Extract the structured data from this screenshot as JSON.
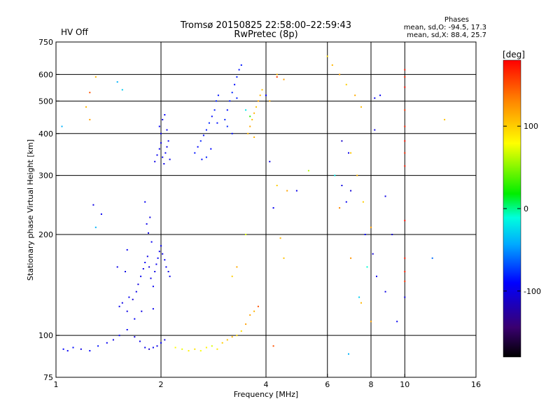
{
  "header": {
    "title_line1": "Tromsø 20150825 22:58:00–22:59:43",
    "title_line2": "RwPretec (8p)",
    "hv_status": "HV Off",
    "hv_color": "#d40000",
    "stats_title": "Phases",
    "stats_line1": "mean, sd,O: -94.5, 17.3",
    "stats_line2": "mean, sd,X: 88.4, 25.7"
  },
  "chart_data": {
    "type": "scatter",
    "xlabel": "Frequency [MHz]",
    "ylabel": "Stationary phase Virtual Height [km]",
    "x_scale": "log",
    "y_scale": "log",
    "xlim": [
      1,
      16
    ],
    "ylim": [
      75,
      750
    ],
    "x_ticks": [
      {
        "value": 1,
        "label": "1"
      },
      {
        "value": 2,
        "label": "2"
      },
      {
        "value": 4,
        "label": "4"
      },
      {
        "value": 6,
        "label": "6"
      },
      {
        "value": 8,
        "label": "8"
      },
      {
        "value": 10,
        "label": "10"
      },
      {
        "value": 16,
        "label": "16"
      }
    ],
    "y_ticks": [
      {
        "value": 75,
        "label": "75"
      },
      {
        "value": 100,
        "label": "100"
      },
      {
        "value": 200,
        "label": "200"
      },
      {
        "value": 300,
        "label": "300"
      },
      {
        "value": 400,
        "label": "400"
      },
      {
        "value": 500,
        "label": "500"
      },
      {
        "value": 600,
        "label": "600"
      },
      {
        "value": 750,
        "label": "750"
      }
    ],
    "x_grid": [
      2,
      4,
      6,
      8,
      10
    ],
    "y_grid": [
      100,
      200,
      300,
      400,
      500,
      600
    ],
    "colorbar": {
      "label": "[deg]",
      "range": [
        -180,
        180
      ],
      "ticks": [
        {
          "value": 100,
          "label": "100"
        },
        {
          "value": 0,
          "label": "0"
        },
        {
          "value": -100,
          "label": "-100"
        }
      ]
    },
    "points": [
      [
        1.05,
        91,
        -90
      ],
      [
        1.08,
        90,
        -95
      ],
      [
        1.12,
        92,
        -88
      ],
      [
        1.18,
        91,
        -100
      ],
      [
        1.25,
        90,
        -92
      ],
      [
        1.32,
        93,
        -85
      ],
      [
        1.4,
        95,
        -95
      ],
      [
        1.46,
        97,
        -100
      ],
      [
        1.52,
        100,
        -90
      ],
      [
        1.6,
        104,
        -95
      ],
      [
        1.68,
        99,
        -102
      ],
      [
        1.74,
        96,
        -98
      ],
      [
        1.8,
        92,
        -95
      ],
      [
        1.85,
        91,
        -110
      ],
      [
        1.9,
        92,
        -96
      ],
      [
        1.95,
        93,
        -100
      ],
      [
        2.0,
        95,
        -92
      ],
      [
        2.05,
        97,
        -99
      ],
      [
        1.55,
        125,
        -100
      ],
      [
        1.62,
        130,
        -95
      ],
      [
        1.66,
        128,
        -105
      ],
      [
        1.7,
        135,
        -98
      ],
      [
        1.72,
        142,
        -102
      ],
      [
        1.75,
        150,
        -96
      ],
      [
        1.78,
        158,
        -100
      ],
      [
        1.8,
        165,
        -92
      ],
      [
        1.83,
        172,
        -99
      ],
      [
        1.85,
        160,
        -104
      ],
      [
        1.87,
        148,
        -100
      ],
      [
        1.9,
        140,
        -95
      ],
      [
        1.92,
        155,
        -101
      ],
      [
        1.94,
        163,
        -97
      ],
      [
        1.96,
        170,
        -93
      ],
      [
        1.98,
        178,
        -99
      ],
      [
        2.0,
        185,
        -96
      ],
      [
        2.02,
        175,
        -100
      ],
      [
        2.05,
        168,
        -92
      ],
      [
        2.07,
        160,
        -95
      ],
      [
        2.1,
        155,
        -100
      ],
      [
        2.12,
        150,
        -97
      ],
      [
        1.88,
        190,
        -95
      ],
      [
        1.84,
        202,
        -100
      ],
      [
        1.82,
        215,
        -98
      ],
      [
        1.86,
        225,
        -102
      ],
      [
        1.8,
        250,
        -94
      ],
      [
        1.9,
        120,
        -97
      ],
      [
        1.76,
        118,
        -100
      ],
      [
        1.68,
        112,
        -93
      ],
      [
        1.6,
        118,
        -99
      ],
      [
        1.52,
        122,
        -96
      ],
      [
        1.92,
        330,
        -100
      ],
      [
        1.95,
        345,
        -95
      ],
      [
        1.98,
        360,
        -98
      ],
      [
        2.0,
        375,
        -101
      ],
      [
        2.02,
        340,
        -96
      ],
      [
        2.04,
        325,
        -99
      ],
      [
        2.06,
        350,
        -94
      ],
      [
        2.08,
        365,
        -100
      ],
      [
        2.1,
        380,
        -97
      ],
      [
        2.0,
        400,
        -99
      ],
      [
        1.98,
        420,
        -95
      ],
      [
        2.02,
        440,
        -100
      ],
      [
        2.05,
        455,
        -92
      ],
      [
        2.08,
        410,
        -96
      ],
      [
        2.12,
        335,
        -98
      ],
      [
        2.5,
        350,
        -85
      ],
      [
        2.55,
        365,
        -88
      ],
      [
        2.6,
        380,
        -82
      ],
      [
        2.65,
        395,
        -86
      ],
      [
        2.7,
        410,
        -84
      ],
      [
        2.75,
        430,
        -80
      ],
      [
        2.8,
        450,
        -87
      ],
      [
        2.85,
        470,
        -83
      ],
      [
        2.9,
        430,
        -85
      ],
      [
        2.78,
        360,
        -89
      ],
      [
        2.7,
        340,
        -81
      ],
      [
        2.62,
        335,
        -86
      ],
      [
        2.88,
        500,
        -82
      ],
      [
        2.92,
        520,
        -85
      ],
      [
        3.05,
        440,
        -82
      ],
      [
        3.1,
        470,
        -86
      ],
      [
        3.15,
        500,
        -84
      ],
      [
        3.2,
        530,
        -80
      ],
      [
        3.25,
        560,
        -88
      ],
      [
        3.3,
        590,
        -82
      ],
      [
        3.35,
        620,
        -86
      ],
      [
        3.4,
        640,
        -84
      ],
      [
        3.1,
        420,
        -80
      ],
      [
        3.2,
        400,
        -86
      ],
      [
        3.3,
        510,
        -82
      ],
      [
        3.55,
        400,
        110
      ],
      [
        3.6,
        420,
        115
      ],
      [
        3.65,
        440,
        108
      ],
      [
        3.7,
        460,
        112
      ],
      [
        3.75,
        480,
        105
      ],
      [
        3.8,
        500,
        118
      ],
      [
        3.85,
        520,
        110
      ],
      [
        3.9,
        540,
        104
      ],
      [
        3.7,
        390,
        112
      ],
      [
        3.6,
        450,
        30
      ],
      [
        3.5,
        470,
        -20
      ],
      [
        2.2,
        92,
        80
      ],
      [
        2.3,
        91,
        75
      ],
      [
        2.4,
        90,
        85
      ],
      [
        2.5,
        91,
        90
      ],
      [
        2.6,
        90,
        78
      ],
      [
        2.7,
        92,
        84
      ],
      [
        2.8,
        93,
        70
      ],
      [
        2.9,
        91,
        88
      ],
      [
        3.0,
        95,
        100
      ],
      [
        3.1,
        97,
        105
      ],
      [
        3.2,
        99,
        110
      ],
      [
        3.3,
        100,
        95
      ],
      [
        3.4,
        103,
        92
      ],
      [
        3.5,
        108,
        120
      ],
      [
        3.6,
        115,
        118
      ],
      [
        3.7,
        118,
        112
      ],
      [
        3.8,
        122,
        150
      ],
      [
        3.3,
        160,
        115
      ],
      [
        3.5,
        200,
        70
      ],
      [
        3.2,
        150,
        100
      ],
      [
        4.3,
        600,
        110
      ],
      [
        4.5,
        580,
        120
      ],
      [
        4.1,
        500,
        115
      ],
      [
        4.3,
        280,
        100
      ],
      [
        4.6,
        270,
        118
      ],
      [
        4.4,
        195,
        110
      ],
      [
        4.5,
        170,
        105
      ],
      [
        4.2,
        93,
        150
      ],
      [
        4.1,
        330,
        -100
      ],
      [
        4.2,
        240,
        -95
      ],
      [
        4.9,
        270,
        -98
      ],
      [
        4.0,
        520,
        -90
      ],
      [
        4.3,
        590,
        160
      ],
      [
        6.0,
        680,
        95
      ],
      [
        6.2,
        640,
        110
      ],
      [
        6.5,
        600,
        120
      ],
      [
        6.8,
        560,
        100
      ],
      [
        7.2,
        520,
        115
      ],
      [
        7.5,
        480,
        108
      ],
      [
        7.0,
        350,
        105
      ],
      [
        7.3,
        300,
        110
      ],
      [
        7.6,
        250,
        100
      ],
      [
        8.0,
        210,
        120
      ],
      [
        6.5,
        240,
        130
      ],
      [
        7.0,
        170,
        125
      ],
      [
        7.5,
        125,
        110
      ],
      [
        8.0,
        110,
        118
      ],
      [
        6.3,
        300,
        -20
      ],
      [
        6.6,
        280,
        -100
      ],
      [
        6.8,
        250,
        -95
      ],
      [
        7.0,
        270,
        -105
      ],
      [
        6.6,
        380,
        -110
      ],
      [
        6.9,
        350,
        -98
      ],
      [
        7.7,
        200,
        -90
      ],
      [
        8.2,
        410,
        -100
      ],
      [
        8.5,
        520,
        -95
      ],
      [
        6.9,
        88,
        -40
      ],
      [
        7.4,
        130,
        -30
      ],
      [
        5.3,
        310,
        60
      ],
      [
        7.8,
        160,
        -10
      ],
      [
        8.8,
        135,
        -100
      ],
      [
        8.3,
        150,
        -98
      ],
      [
        8.1,
        175,
        -105
      ],
      [
        8.2,
        510,
        -95
      ],
      [
        10.0,
        620,
        170
      ],
      [
        10.0,
        590,
        165
      ],
      [
        10.0,
        550,
        175
      ],
      [
        10.0,
        470,
        160
      ],
      [
        10.0,
        420,
        168
      ],
      [
        10.0,
        380,
        172
      ],
      [
        10.0,
        350,
        165
      ],
      [
        10.0,
        320,
        170
      ],
      [
        10.0,
        220,
        175
      ],
      [
        10.0,
        170,
        170
      ],
      [
        10.0,
        155,
        168
      ],
      [
        10.0,
        145,
        162
      ],
      [
        10.0,
        130,
        -100
      ],
      [
        9.5,
        110,
        -95
      ],
      [
        12.0,
        170,
        -60
      ],
      [
        13.0,
        440,
        105
      ],
      [
        8.8,
        260,
        -100
      ],
      [
        9.2,
        200,
        -105
      ],
      [
        1.04,
        420,
        -40
      ],
      [
        1.25,
        530,
        150
      ],
      [
        1.3,
        590,
        110
      ],
      [
        1.5,
        570,
        -40
      ],
      [
        1.55,
        540,
        -30
      ],
      [
        1.22,
        480,
        110
      ],
      [
        1.25,
        440,
        120
      ],
      [
        1.28,
        245,
        -100
      ],
      [
        1.35,
        230,
        -95
      ],
      [
        1.3,
        210,
        -40
      ],
      [
        1.58,
        155,
        -100
      ],
      [
        1.6,
        180,
        -95
      ],
      [
        1.5,
        160,
        -98
      ]
    ]
  }
}
